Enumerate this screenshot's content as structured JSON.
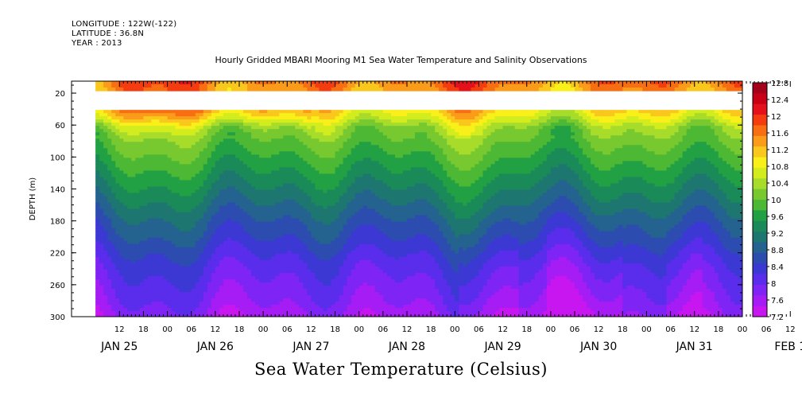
{
  "header": {
    "longitude": "LONGITUDE : 122W(-122)",
    "latitude": "LATITUDE : 36.8N",
    "year": "YEAR : 2013"
  },
  "chart_data": {
    "type": "heatmap",
    "title": "Hourly Gridded MBARI Mooring M1 Sea Water Temperature and Salinity Observations",
    "bottom_title": "Sea Water Temperature (Celsius)",
    "ylabel": "DEPTH (m)",
    "y_ticks": [
      "20",
      "60",
      "100",
      "140",
      "180",
      "220",
      "260",
      "300"
    ],
    "y_tick_values": [
      20,
      60,
      100,
      140,
      180,
      220,
      260,
      300
    ],
    "ylim": [
      300,
      5
    ],
    "x_range_hours": [
      -12,
      156
    ],
    "x_hour_ticks": [
      "12",
      "18",
      "00",
      "06",
      "12",
      "18",
      "00",
      "06",
      "12",
      "18",
      "00",
      "06",
      "12",
      "18",
      "00",
      "06",
      "12",
      "18",
      "00",
      "06",
      "12",
      "18",
      "00",
      "06",
      "12",
      "18",
      "00",
      "06",
      "12",
      "18",
      "00",
      "06"
    ],
    "x_date_ticks": [
      "JAN 25",
      "JAN 26",
      "JAN 27",
      "JAN 28",
      "JAN 29",
      "JAN 30",
      "JAN 31",
      "FEB 1"
    ],
    "data_start_hour": -6,
    "colorbar": {
      "labels": [
        "12.8",
        "12.4",
        "12",
        "11.6",
        "11.2",
        "10.8",
        "10.4",
        "10",
        "9.6",
        "9.2",
        "8.8",
        "8.4",
        "8",
        "7.6",
        "7.2"
      ],
      "values": [
        12.8,
        12.4,
        12,
        11.6,
        11.2,
        10.8,
        10.4,
        10,
        9.6,
        9.2,
        8.8,
        8.4,
        8,
        7.6,
        7.2
      ],
      "colors": [
        "#a5001a",
        "#c80016",
        "#e4101a",
        "#f43c10",
        "#f86e12",
        "#fa9c1a",
        "#fac81c",
        "#f8f018",
        "#d2ec1e",
        "#a8dc2a",
        "#78c830",
        "#4cb834",
        "#22a044",
        "#1a8a58",
        "#1e7670",
        "#246290",
        "#2c4cb0",
        "#3c38d4",
        "#5a2cec",
        "#7e24f4",
        "#a61cf4",
        "#c816f0"
      ]
    },
    "gap_depth_range": [
      18,
      40
    ],
    "profile_depths": [
      5,
      40,
      50,
      60,
      80,
      100,
      120,
      140,
      160,
      180,
      200,
      220,
      240,
      260,
      280,
      300
    ],
    "mean_profile": [
      11.6,
      11.0,
      10.7,
      10.3,
      10.0,
      9.75,
      9.5,
      9.25,
      9.0,
      8.75,
      8.55,
      8.3,
      8.1,
      7.95,
      7.8,
      7.6
    ]
  }
}
